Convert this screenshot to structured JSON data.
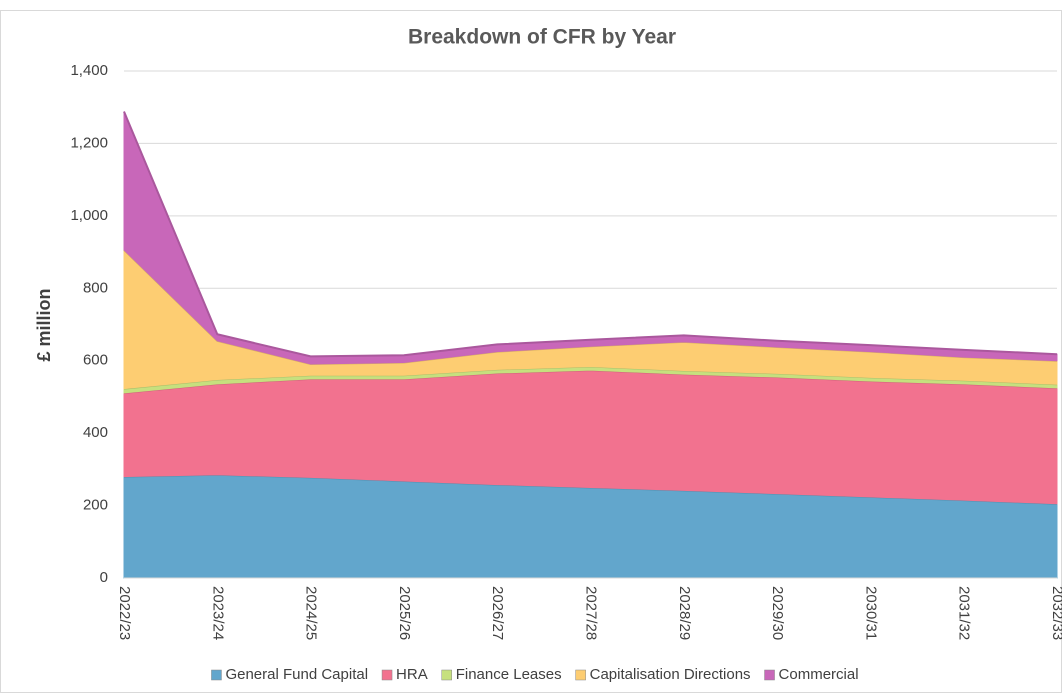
{
  "chart_data": {
    "type": "stacked_area",
    "title": "Breakdown of CFR by Year",
    "y_label": "£ million",
    "categories": [
      "2022/23",
      "2023/24",
      "2024/25",
      "2025/26",
      "2026/27",
      "2027/28",
      "2028/29",
      "2029/30",
      "2030/31",
      "2031/32",
      "2032/33"
    ],
    "series": [
      {
        "name": "General Fund Capital",
        "color": "#62a6cc",
        "values": [
          280,
          285,
          278,
          268,
          258,
          250,
          242,
          233,
          224,
          215,
          205
        ]
      },
      {
        "name": "HRA",
        "color": "#f2728f",
        "values": [
          231,
          251,
          272,
          282,
          308,
          324,
          321,
          322,
          320,
          321,
          320
        ]
      },
      {
        "name": "Finance Leases",
        "color": "#c6e07e",
        "values": [
          12,
          12,
          10,
          10,
          10,
          10,
          10,
          10,
          10,
          10,
          10
        ]
      },
      {
        "name": "Capitalisation Directions",
        "color": "#fdcd72",
        "values": [
          383,
          107,
          31,
          35,
          49,
          56,
          79,
          73,
          71,
          64,
          65
        ]
      },
      {
        "name": "Commercial",
        "color": "#c867b9",
        "values": [
          382,
          18,
          21,
          20,
          20,
          18,
          18,
          17,
          18,
          20,
          18
        ]
      }
    ],
    "ylim": [
      0,
      1400
    ],
    "yticks": [
      0,
      200,
      400,
      600,
      800,
      {
        "value": 1000,
        "label": "1,000"
      },
      {
        "value": 1200,
        "label": "1,200"
      },
      {
        "value": 1400,
        "label": "1,400"
      }
    ],
    "grid": true,
    "legend": "bottom"
  }
}
